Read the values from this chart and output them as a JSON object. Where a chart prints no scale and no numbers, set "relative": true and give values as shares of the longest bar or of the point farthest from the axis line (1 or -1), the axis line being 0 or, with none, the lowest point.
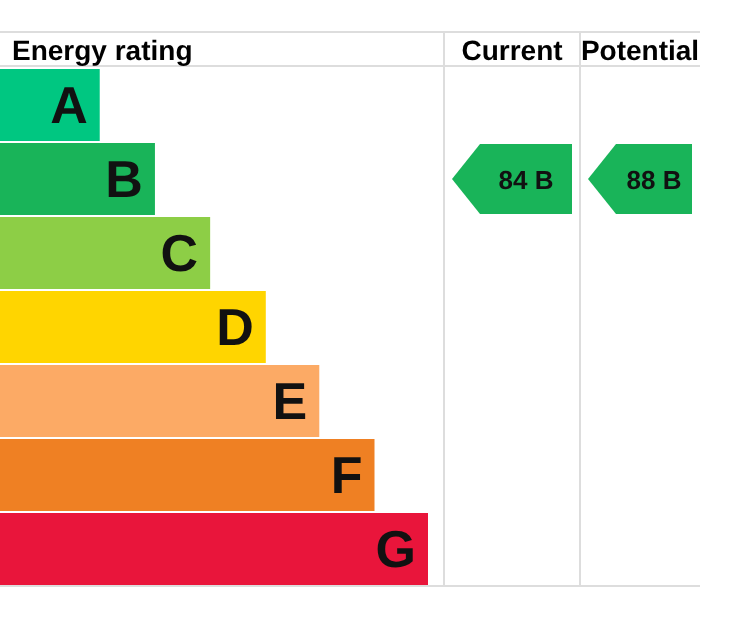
{
  "chart_data": {
    "type": "bar",
    "orientation": "horizontal",
    "relative": true,
    "title": "Energy rating",
    "categories": [
      "A",
      "B",
      "C",
      "D",
      "E",
      "F",
      "G"
    ],
    "values": [
      0.233,
      0.362,
      0.491,
      0.621,
      0.746,
      0.875,
      1
    ],
    "colors": [
      "#00c781",
      "#19b459",
      "#8dce46",
      "#ffd500",
      "#fcaa65",
      "#ef8023",
      "#e9153b"
    ],
    "annotations": [
      "Current",
      "Potential",
      "84 B",
      "88 B"
    ]
  }
}
